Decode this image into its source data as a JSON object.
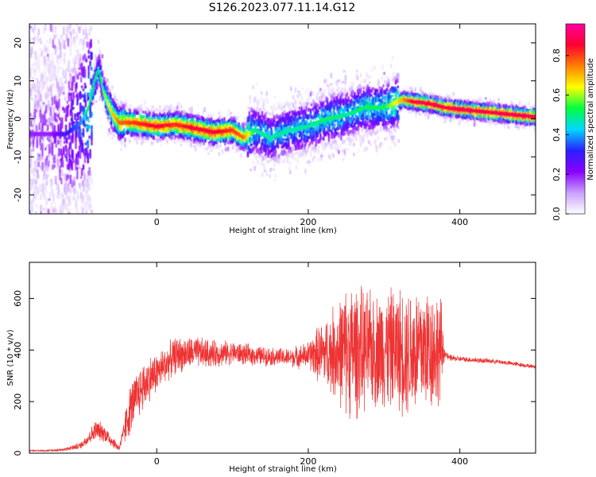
{
  "title": "S126.2023.077.11.14.G12",
  "colorbar": {
    "label": "Normalized spectral amplitude",
    "ticks": [
      "0.0",
      "0.2",
      "0.4",
      "0.6",
      "0.8"
    ],
    "tick_values": [
      0.0,
      0.2,
      0.4,
      0.6,
      0.8
    ],
    "range": [
      0,
      0.96
    ],
    "stops": [
      "#ffffff",
      "#c8a0ff",
      "#8a00ff",
      "#2a20ff",
      "#00d8ff",
      "#00ff40",
      "#ffff00",
      "#ff8000",
      "#ff0030",
      "#ff00a0"
    ]
  },
  "chart_data": [
    {
      "type": "heatmap",
      "xlabel": "Height of straight line (km)",
      "ylabel": "Frequency (Hz)",
      "xlim": [
        -168,
        500
      ],
      "ylim": [
        -25,
        25
      ],
      "xticks": [
        "0",
        "200",
        "400"
      ],
      "xtick_values": [
        0,
        200,
        400
      ],
      "yticks": [
        "-20",
        "-10",
        "0",
        "10",
        "20"
      ],
      "ytick_values": [
        -20,
        -10,
        0,
        10,
        20
      ],
      "ridge": {
        "x": [
          -140,
          -120,
          -100,
          -90,
          -80,
          -76,
          -70,
          -60,
          -50,
          -30,
          0,
          25,
          50,
          75,
          100,
          115,
          130,
          150,
          175,
          200,
          225,
          250,
          275,
          300,
          325,
          340,
          360,
          380,
          400,
          425,
          450,
          475,
          500
        ],
        "y": [
          -4,
          -4,
          -1,
          3,
          11,
          13,
          7,
          2,
          -1,
          -1,
          -2,
          -1.5,
          -2.5,
          -3.5,
          -3,
          -5,
          -3,
          -5,
          -3,
          -2,
          0,
          1,
          3,
          3,
          5,
          4.5,
          4,
          3,
          2.5,
          2,
          1.5,
          1,
          0.5
        ],
        "amplitude": [
          0.2,
          0.3,
          0.4,
          0.55,
          0.55,
          0.5,
          0.6,
          0.7,
          0.8,
          0.85,
          0.9,
          0.85,
          0.9,
          0.9,
          0.85,
          0.8,
          0.5,
          0.5,
          0.5,
          0.5,
          0.55,
          0.5,
          0.55,
          0.55,
          0.75,
          0.92,
          0.92,
          0.92,
          0.92,
          0.92,
          0.92,
          0.92,
          0.92
        ]
      }
    },
    {
      "type": "line",
      "xlabel": "Height of straight line (km)",
      "ylabel": "SNR (10 * v/v)",
      "xlim": [
        -168,
        500
      ],
      "ylim": [
        0,
        740
      ],
      "xticks": [
        "0",
        "200",
        "400"
      ],
      "xtick_values": [
        0,
        200,
        400
      ],
      "yticks": [
        "0",
        "200",
        "400",
        "600"
      ],
      "ytick_values": [
        0,
        200,
        400,
        600
      ],
      "color": "#ee3333",
      "x": [
        -168,
        -140,
        -120,
        -100,
        -90,
        -80,
        -70,
        -60,
        -50,
        -45,
        -40,
        -35,
        -30,
        -20,
        -10,
        0,
        10,
        25,
        50,
        75,
        100,
        125,
        150,
        175,
        200,
        210,
        225,
        240,
        250,
        260,
        275,
        290,
        300,
        310,
        325,
        340,
        360,
        375,
        380,
        385,
        400,
        425,
        450,
        475,
        500
      ],
      "y": [
        10,
        10,
        15,
        30,
        60,
        90,
        80,
        50,
        20,
        60,
        120,
        170,
        200,
        250,
        290,
        310,
        340,
        380,
        390,
        385,
        390,
        380,
        375,
        370,
        380,
        385,
        390,
        395,
        400,
        400,
        395,
        400,
        410,
        405,
        400,
        395,
        410,
        400,
        390,
        370,
        365,
        360,
        355,
        345,
        335
      ],
      "envelope": [
        2,
        5,
        8,
        15,
        30,
        45,
        40,
        30,
        15,
        40,
        90,
        110,
        110,
        110,
        100,
        90,
        80,
        80,
        70,
        60,
        50,
        45,
        40,
        40,
        60,
        110,
        160,
        230,
        280,
        300,
        260,
        250,
        270,
        260,
        280,
        300,
        280,
        240,
        20,
        15,
        12,
        12,
        10,
        10,
        8
      ]
    }
  ]
}
